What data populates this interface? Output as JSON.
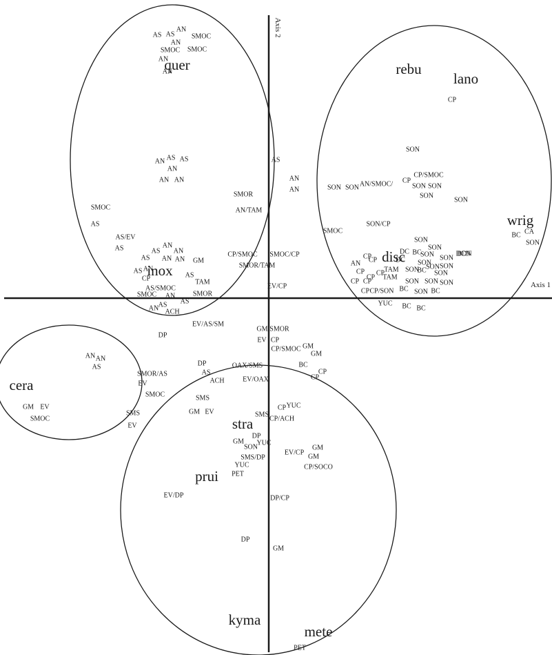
{
  "chart_data": {
    "type": "scatter",
    "title": "",
    "xlabel": "Axis 1",
    "ylabel": "Axis 2",
    "xlim": [
      -390,
      411
    ],
    "ylim": [
      -517,
      432
    ],
    "grid": false,
    "legend": "none",
    "groups": [
      {
        "cx": -140,
        "cy": 200,
        "rx": 148,
        "ry": 225
      },
      {
        "cx": 240,
        "cy": 170,
        "rx": 170,
        "ry": 225
      },
      {
        "cx": -290,
        "cy": -122,
        "rx": 106,
        "ry": 83
      },
      {
        "cx": -15,
        "cy": -307,
        "rx": 200,
        "ry": 210
      }
    ],
    "species": [
      {
        "label": "quer",
        "x": -133,
        "y": 336
      },
      {
        "label": "inox",
        "x": -158,
        "y": 38
      },
      {
        "label": "rebu",
        "x": 203,
        "y": 330
      },
      {
        "label": "lano",
        "x": 286,
        "y": 316
      },
      {
        "label": "disc",
        "x": 181,
        "y": 58
      },
      {
        "label": "wrig",
        "x": 365,
        "y": 111
      },
      {
        "label": "cera",
        "x": -359,
        "y": -128
      },
      {
        "label": "stra",
        "x": -38,
        "y": -184
      },
      {
        "label": "prui",
        "x": -90,
        "y": -260
      },
      {
        "label": "kyma",
        "x": -35,
        "y": -468
      },
      {
        "label": "mete",
        "x": 72,
        "y": -485
      }
    ],
    "points": [
      {
        "label": "AS",
        "x": -162,
        "y": 381
      },
      {
        "label": "AS",
        "x": -143,
        "y": 382
      },
      {
        "label": "AN",
        "x": -127,
        "y": 389
      },
      {
        "label": "AN",
        "x": -135,
        "y": 370
      },
      {
        "label": "SMOC",
        "x": -98,
        "y": 379
      },
      {
        "label": "SMOC",
        "x": -143,
        "y": 359
      },
      {
        "label": "SMOC",
        "x": -104,
        "y": 360
      },
      {
        "label": "AN",
        "x": -153,
        "y": 346
      },
      {
        "label": "AN",
        "x": -147,
        "y": 328
      },
      {
        "label": "AN",
        "x": -158,
        "y": 198
      },
      {
        "label": "AS",
        "x": -142,
        "y": 203
      },
      {
        "label": "AS",
        "x": -123,
        "y": 201
      },
      {
        "label": "AN",
        "x": -140,
        "y": 187
      },
      {
        "label": "AN",
        "x": -152,
        "y": 171
      },
      {
        "label": "AN",
        "x": -130,
        "y": 171
      },
      {
        "label": "SMOC",
        "x": -244,
        "y": 131
      },
      {
        "label": "AS",
        "x": -252,
        "y": 107
      },
      {
        "label": "AS/EV",
        "x": -208,
        "y": 88
      },
      {
        "label": "AS",
        "x": -217,
        "y": 72
      },
      {
        "label": "AN",
        "x": -147,
        "y": 76
      },
      {
        "label": "AS",
        "x": -164,
        "y": 68
      },
      {
        "label": "AN",
        "x": -131,
        "y": 68
      },
      {
        "label": "AS",
        "x": -179,
        "y": 58
      },
      {
        "label": "AN",
        "x": -148,
        "y": 57
      },
      {
        "label": "AN",
        "x": -129,
        "y": 56
      },
      {
        "label": "GM",
        "x": -102,
        "y": 54
      },
      {
        "label": "AS",
        "x": -190,
        "y": 39
      },
      {
        "label": "AN",
        "x": -175,
        "y": 42
      },
      {
        "label": "CP",
        "x": -178,
        "y": 28
      },
      {
        "label": "AS",
        "x": -115,
        "y": 33
      },
      {
        "label": "TAM",
        "x": -96,
        "y": 23
      },
      {
        "label": "AS/SMOC",
        "x": -157,
        "y": 14
      },
      {
        "label": "SMOC",
        "x": -177,
        "y": 5
      },
      {
        "label": "AN",
        "x": -143,
        "y": 3
      },
      {
        "label": "SMOR",
        "x": -96,
        "y": 6
      },
      {
        "label": "AN",
        "x": -167,
        "y": -15
      },
      {
        "label": "AS",
        "x": -154,
        "y": -10
      },
      {
        "label": "AS",
        "x": -122,
        "y": -5
      },
      {
        "label": "ACH",
        "x": -140,
        "y": -20
      },
      {
        "label": "DP",
        "x": -154,
        "y": -54
      },
      {
        "label": "EV/AS/SM",
        "x": -88,
        "y": -38
      },
      {
        "label": "SMOR",
        "x": -37,
        "y": 150
      },
      {
        "label": "AN/TAM",
        "x": -29,
        "y": 127
      },
      {
        "label": "CP/SMOC",
        "x": -38,
        "y": 63
      },
      {
        "label": "SMOR/TAM",
        "x": -17,
        "y": 47
      },
      {
        "label": "AS",
        "x": 10,
        "y": 200
      },
      {
        "label": "AN",
        "x": 37,
        "y": 173
      },
      {
        "label": "AN",
        "x": 37,
        "y": 157
      },
      {
        "label": "SMOC/CP",
        "x": 23,
        "y": 63
      },
      {
        "label": "EV/CP",
        "x": 12,
        "y": 17
      },
      {
        "label": "CP",
        "x": 266,
        "y": 287
      },
      {
        "label": "SON",
        "x": 209,
        "y": 215
      },
      {
        "label": "SON",
        "x": 95,
        "y": 160
      },
      {
        "label": "SON",
        "x": 121,
        "y": 160
      },
      {
        "label": "AN/SMOC/",
        "x": 156,
        "y": 165
      },
      {
        "label": "CP/SMOC",
        "x": 232,
        "y": 178
      },
      {
        "label": "CP",
        "x": 200,
        "y": 170
      },
      {
        "label": "SON",
        "x": 218,
        "y": 162
      },
      {
        "label": "SON",
        "x": 241,
        "y": 162
      },
      {
        "label": "SON",
        "x": 229,
        "y": 148
      },
      {
        "label": "SON",
        "x": 279,
        "y": 142
      },
      {
        "label": "SMOC",
        "x": 93,
        "y": 97
      },
      {
        "label": "SON/CP",
        "x": 159,
        "y": 107
      },
      {
        "label": "SON",
        "x": 221,
        "y": 84
      },
      {
        "label": "DC",
        "x": 197,
        "y": 67
      },
      {
        "label": "SON",
        "x": 241,
        "y": 73
      },
      {
        "label": "AN",
        "x": 126,
        "y": 50
      },
      {
        "label": "CP",
        "x": 143,
        "y": 60
      },
      {
        "label": "CP",
        "x": 151,
        "y": 55
      },
      {
        "label": "DC",
        "x": 191,
        "y": 55
      },
      {
        "label": "BC",
        "x": 215,
        "y": 66
      },
      {
        "label": "SON",
        "x": 230,
        "y": 63
      },
      {
        "label": "DCN",
        "x": 282,
        "y": 64
      },
      {
        "label": "BDN",
        "x": 284,
        "y": 64
      },
      {
        "label": "SON",
        "x": 226,
        "y": 51
      },
      {
        "label": "SON",
        "x": 258,
        "y": 58
      },
      {
        "label": "SON",
        "x": 238,
        "y": 45
      },
      {
        "label": "SON",
        "x": 258,
        "y": 46
      },
      {
        "label": "CP",
        "x": 133,
        "y": 38
      },
      {
        "label": "CP",
        "x": 148,
        "y": 30
      },
      {
        "label": "CP",
        "x": 162,
        "y": 36
      },
      {
        "label": "TAM",
        "x": 178,
        "y": 41
      },
      {
        "label": "TAM",
        "x": 176,
        "y": 30
      },
      {
        "label": "SON",
        "x": 208,
        "y": 41
      },
      {
        "label": "BC",
        "x": 222,
        "y": 40
      },
      {
        "label": "SON",
        "x": 250,
        "y": 36
      },
      {
        "label": "CP",
        "x": 125,
        "y": 24
      },
      {
        "label": "CP",
        "x": 143,
        "y": 24
      },
      {
        "label": "SON",
        "x": 208,
        "y": 24
      },
      {
        "label": "SON",
        "x": 236,
        "y": 24
      },
      {
        "label": "SON",
        "x": 258,
        "y": 22
      },
      {
        "label": "CP",
        "x": 140,
        "y": 10
      },
      {
        "label": "CP/SON",
        "x": 164,
        "y": 10
      },
      {
        "label": "BC",
        "x": 196,
        "y": 13
      },
      {
        "label": "SON",
        "x": 221,
        "y": 9
      },
      {
        "label": "BC",
        "x": 242,
        "y": 10
      },
      {
        "label": "YUC",
        "x": 169,
        "y": -8
      },
      {
        "label": "BC",
        "x": 200,
        "y": -12
      },
      {
        "label": "BC",
        "x": 221,
        "y": -15
      },
      {
        "label": "BC",
        "x": 359,
        "y": 91
      },
      {
        "label": "CA",
        "x": 378,
        "y": 96
      },
      {
        "label": "SON",
        "x": 383,
        "y": 80
      },
      {
        "label": "GM/SMOR",
        "x": 6,
        "y": -45
      },
      {
        "label": "EV",
        "x": -10,
        "y": -61
      },
      {
        "label": "CP",
        "x": 9,
        "y": -61
      },
      {
        "label": "CP/SMOC",
        "x": 25,
        "y": -74
      },
      {
        "label": "GM",
        "x": 57,
        "y": -70
      },
      {
        "label": "GM",
        "x": 69,
        "y": -81
      },
      {
        "label": "BC",
        "x": 50,
        "y": -97
      },
      {
        "label": "CP",
        "x": 78,
        "y": -107
      },
      {
        "label": "CP",
        "x": 67,
        "y": -115
      },
      {
        "label": "OAX/SMS",
        "x": -31,
        "y": -98
      },
      {
        "label": "EV/OAX",
        "x": -19,
        "y": -118
      },
      {
        "label": "AN",
        "x": -259,
        "y": -84
      },
      {
        "label": "AN",
        "x": -244,
        "y": -88
      },
      {
        "label": "AS",
        "x": -250,
        "y": -100
      },
      {
        "label": "SMOR/AS",
        "x": -169,
        "y": -110
      },
      {
        "label": "EV",
        "x": -183,
        "y": -124
      },
      {
        "label": "SMOC",
        "x": -165,
        "y": -140
      },
      {
        "label": "GM",
        "x": -349,
        "y": -158
      },
      {
        "label": "EV",
        "x": -325,
        "y": -158
      },
      {
        "label": "SMOC",
        "x": -332,
        "y": -175
      },
      {
        "label": "SMS",
        "x": -197,
        "y": -167
      },
      {
        "label": "EV",
        "x": -198,
        "y": -185
      },
      {
        "label": "DP",
        "x": -97,
        "y": -95
      },
      {
        "label": "AS",
        "x": -91,
        "y": -108
      },
      {
        "label": "ACH",
        "x": -75,
        "y": -120
      },
      {
        "label": "SMS",
        "x": -96,
        "y": -145
      },
      {
        "label": "GM",
        "x": -108,
        "y": -165
      },
      {
        "label": "EV",
        "x": -86,
        "y": -165
      },
      {
        "label": "SMS",
        "x": -10,
        "y": -169
      },
      {
        "label": "CP",
        "x": 19,
        "y": -159
      },
      {
        "label": "YUC",
        "x": 36,
        "y": -156
      },
      {
        "label": "CP/ACH",
        "x": 19,
        "y": -175
      },
      {
        "label": "DP",
        "x": -18,
        "y": -200
      },
      {
        "label": "YUC",
        "x": -7,
        "y": -210
      },
      {
        "label": "GM",
        "x": -44,
        "y": -208
      },
      {
        "label": "SON",
        "x": -26,
        "y": -216
      },
      {
        "label": "SMS/DP",
        "x": -23,
        "y": -231
      },
      {
        "label": "YUC",
        "x": -39,
        "y": -242
      },
      {
        "label": "PET",
        "x": -45,
        "y": -255
      },
      {
        "label": "EV/CP",
        "x": 37,
        "y": -224
      },
      {
        "label": "GM",
        "x": 71,
        "y": -217
      },
      {
        "label": "GM",
        "x": 65,
        "y": -230
      },
      {
        "label": "CP/SOCO",
        "x": 72,
        "y": -245
      },
      {
        "label": "EV/DP",
        "x": -138,
        "y": -286
      },
      {
        "label": "DP/CP",
        "x": 16,
        "y": -290
      },
      {
        "label": "DP",
        "x": -34,
        "y": -350
      },
      {
        "label": "GM",
        "x": 14,
        "y": -363
      },
      {
        "label": "PET",
        "x": 45,
        "y": -507
      }
    ]
  }
}
